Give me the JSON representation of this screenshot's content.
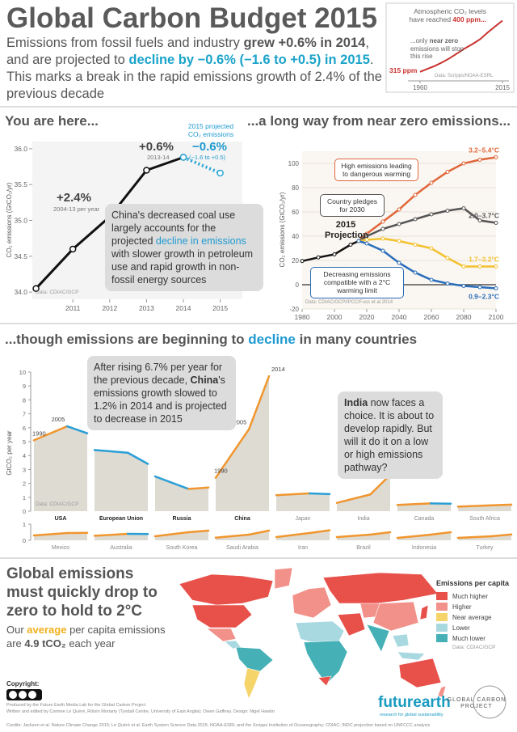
{
  "header": {
    "title": "Global Carbon Budget 2015",
    "subtitle": [
      "Emissions from fossil fuels and industry ",
      "grew +0.6% in 2014",
      ", and are projected to ",
      "decline by −0.6% (−1.6 to +0.5) in 2015",
      ". This marks a break in the rapid emissions growth of 2.4% of the previous decade"
    ]
  },
  "chart_data": [
    {
      "type": "line",
      "annotation": [
        "Atmospheric CO₂ levels have reached ",
        "400 ppm..."
      ],
      "note": [
        "...only ",
        "near zero",
        " emissions will stop this rise"
      ],
      "start_label": "315 ppm",
      "source": "Data: Scripps/NOAA-ESRL",
      "x": [
        1960,
        1965,
        1970,
        1975,
        1980,
        1985,
        1990,
        1995,
        2000,
        2005,
        2010,
        2015
      ],
      "values": [
        315,
        320,
        325,
        331,
        338,
        346,
        354,
        361,
        369,
        380,
        390,
        400
      ],
      "color": "#c8322e",
      "xlim": [
        1960,
        2015
      ],
      "ylim": [
        300,
        410
      ],
      "xticks": [
        1960,
        2015
      ]
    },
    {
      "type": "line",
      "title": "You are here...",
      "ylabel": "CO₂ emissions (GtCO₂/yr)",
      "x": [
        2010,
        2011,
        2012,
        2013,
        2014,
        2015
      ],
      "series": [
        {
          "color": "#111111",
          "values": [
            34.05,
            34.6,
            35.05,
            35.7,
            35.88,
            null
          ]
        },
        {
          "name": "2015 projected CO₂ emissions",
          "color": "#29a6d6",
          "dashed": true,
          "values": [
            null,
            null,
            null,
            null,
            35.88,
            35.66
          ]
        }
      ],
      "annotations": {
        "growth_decade": "+2.4%",
        "growth_decade_period": "2004-13 per year",
        "growth_2014": "+0.6%",
        "growth_2014_period": "2013-14",
        "projection": "−0.6%",
        "projection_range": "(−1.6 to +0.5)"
      },
      "callout": [
        "China's decreased coal use largely accounts for the projected ",
        "decline in emissions",
        " with slower growth in petroleum use and rapid growth in non-fossil energy sources"
      ],
      "source": "Data: CDIAC/GCP",
      "xlim": [
        2009.9,
        2015.6
      ],
      "ylim": [
        33.9,
        36.1
      ],
      "xticks": [
        2011,
        2012,
        2013,
        2014,
        2015
      ],
      "yticks": [
        {
          "value": 34,
          "label": "34.0"
        },
        34.5,
        {
          "value": 35,
          "label": "35.0"
        },
        35.5,
        {
          "value": 36,
          "label": "36.0"
        }
      ]
    },
    {
      "type": "line",
      "title": "...a long way from near zero emissions...",
      "ylabel": "CO₂ emissions (GtCO₂/yr)",
      "x": [
        1980,
        1990,
        2000,
        2010,
        2015,
        2020,
        2030,
        2040,
        2050,
        2060,
        2070,
        2080,
        2090,
        2100
      ],
      "series": [
        {
          "color": "#111111",
          "values": [
            19.5,
            22.5,
            25,
            33,
            36,
            null,
            null,
            null,
            null,
            null,
            null,
            null,
            null,
            null
          ]
        },
        {
          "name": "3.2–5.4°C",
          "color": "#e0673a",
          "values": [
            null,
            null,
            null,
            null,
            36,
            42,
            52,
            62,
            74,
            84,
            93,
            100,
            103,
            105
          ]
        },
        {
          "name": "2.0–3.7°C",
          "color": "#555555",
          "values": [
            null,
            null,
            null,
            null,
            36,
            40,
            46,
            50,
            54,
            58,
            61,
            63,
            53,
            51
          ]
        },
        {
          "name": "1.7–3.2°C",
          "color": "#f2c12e",
          "values": [
            null,
            null,
            null,
            null,
            36,
            37,
            38,
            36,
            33,
            30,
            22,
            15,
            15,
            15
          ]
        },
        {
          "name": "0.9–2.3°C",
          "color": "#2a6ebb",
          "values": [
            null,
            null,
            null,
            null,
            36,
            34,
            28,
            18,
            10,
            4,
            1,
            -1,
            -2,
            -3
          ]
        }
      ],
      "annotations": {
        "high": "High emissions leading to dangerous warming",
        "pledges": "Country pledges for 2030",
        "projection": "2015 Projection",
        "low": "Decreasing emissions compatible with a 2°C warming limit"
      },
      "source": "Data: CDIAC/GCP/IPCC/Fuss et al 2014",
      "xlim": [
        1980,
        2100
      ],
      "ylim": [
        -20,
        110
      ],
      "xticks": [
        1980,
        2000,
        2020,
        2040,
        2060,
        2080,
        2100
      ],
      "yticks": [
        -20,
        0,
        20,
        40,
        60,
        80,
        100
      ],
      "grid": true
    },
    {
      "type": "line",
      "title": [
        "...though emissions are beginning to ",
        "decline",
        " in many countries"
      ],
      "ylabel": "GtCO₂ per year",
      "x": [
        1990,
        2005,
        2014
      ],
      "xlim": [
        1990,
        2014
      ],
      "rise_color": "#f0962f",
      "fall_color": "#2a9fd6",
      "callouts": {
        "china": [
          "After rising 6.7% per year for the previous decade, ",
          "China",
          "'s emissions growth slowed to 1.2% in 2014 and is projected to decrease in 2015"
        ],
        "india": [
          "India",
          " now faces a choice. It is about to develop rapidly. But will it do it on a low or high emissions pathway?"
        ]
      },
      "source": "Data: CDIAC/GCP",
      "panels": [
        {
          "ylim": [
            0,
            10
          ],
          "yticks": [
            0,
            1,
            2,
            3,
            4,
            5,
            6,
            7,
            8,
            9,
            10
          ],
          "countries": [
            {
              "name": "USA",
              "values": [
                5.1,
                6.1,
                5.6
              ]
            },
            {
              "name": "European Union",
              "values": [
                4.4,
                4.2,
                3.4
              ]
            },
            {
              "name": "Russia",
              "values": [
                2.5,
                1.6,
                1.7
              ]
            },
            {
              "name": "China",
              "values": [
                2.4,
                5.9,
                9.7
              ]
            },
            {
              "name": "Japan",
              "values": [
                1.15,
                1.28,
                1.23
              ]
            },
            {
              "name": "India",
              "values": [
                0.6,
                1.2,
                2.6
              ]
            },
            {
              "name": "Canada",
              "values": [
                0.45,
                0.56,
                0.54
              ]
            },
            {
              "name": "South Africa",
              "values": [
                0.33,
                0.42,
                0.47
              ]
            }
          ]
        },
        {
          "ylim": [
            0,
            1
          ],
          "yticks": [
            0,
            1
          ],
          "countries": [
            {
              "name": "Mexico",
              "values": [
                0.3,
                0.45,
                0.46
              ]
            },
            {
              "name": "Australia",
              "values": [
                0.28,
                0.4,
                0.39
              ]
            },
            {
              "name": "South Korea",
              "values": [
                0.25,
                0.5,
                0.6
              ]
            },
            {
              "name": "Saudi Arabia",
              "values": [
                0.16,
                0.35,
                0.6
              ]
            },
            {
              "name": "Iran",
              "values": [
                0.2,
                0.45,
                0.62
              ]
            },
            {
              "name": "Brazil",
              "values": [
                0.2,
                0.35,
                0.5
              ]
            },
            {
              "name": "Indonesia",
              "values": [
                0.15,
                0.35,
                0.5
              ]
            },
            {
              "name": "Turkey",
              "values": [
                0.15,
                0.25,
                0.36
              ]
            }
          ]
        }
      ]
    }
  ],
  "map": {
    "title": "Global emissions must quickly drop to zero to hold to 2°C",
    "text": [
      "Our ",
      "average",
      " per capita emissions are ",
      "4.9 tCO₂",
      " each year"
    ],
    "legend_title": "Emissions per capita",
    "legend": [
      {
        "label": "Much higher",
        "color": "#e8504a"
      },
      {
        "label": "Higher",
        "color": "#f29189"
      },
      {
        "label": "Near average",
        "color": "#f5d46a"
      },
      {
        "label": "Lower",
        "color": "#a9d9e0"
      },
      {
        "label": "Much lower",
        "color": "#45b1b6"
      }
    ],
    "source": "Data: CDIAC/GCP"
  },
  "footer": {
    "copyright": "Copyright:",
    "credits": [
      "Produced by the Future Earth Media Lab for the Global Carbon Project",
      "Written and edited by Corinne Le Quéré, Róisín Moriarty (Tyndall Centre, University of East Anglia); Owen Gaffney. Design: Nigel Hawtin",
      "Credits: Jackson et al. Nature Climate Change 2015; Le Quéré et al. Earth System Science Data 2015; NOAA-ESRL and the Scripps Institution of Oceanography; CDIAC; INDC projection based on UNFCCC analysis"
    ],
    "logo": "futurearth",
    "tagline": "research for global sustainability",
    "partner": "GLOBAL CARBON PROJECT"
  }
}
